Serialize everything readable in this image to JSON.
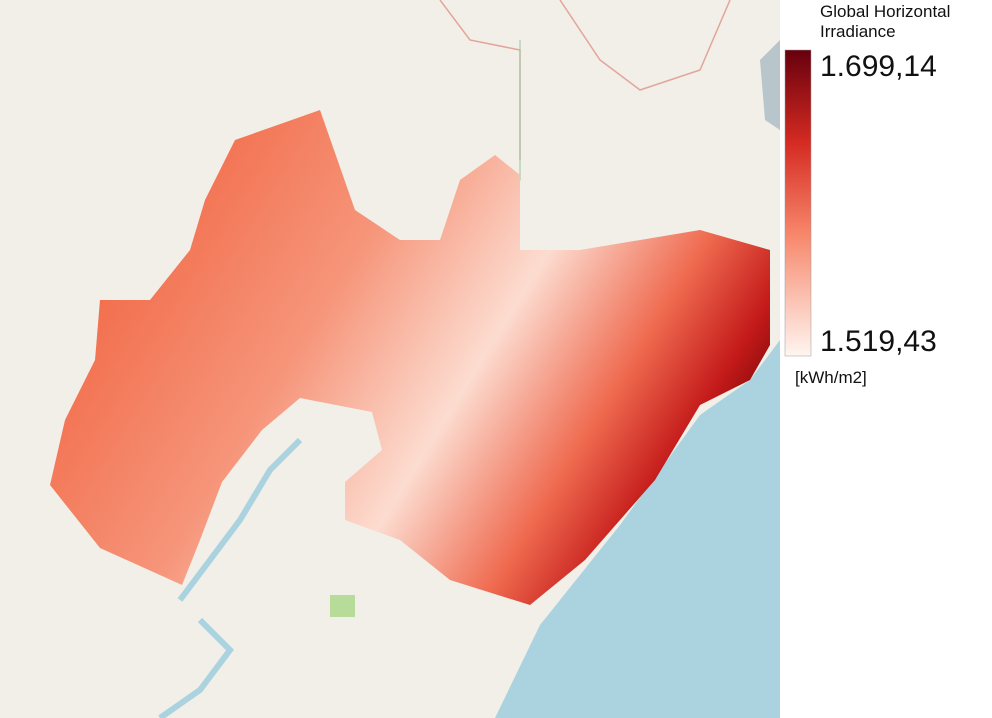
{
  "legend": {
    "title": "Global Horizontal Irradiance",
    "max_label": "1.699,14",
    "min_label": "1.519,43",
    "unit": "[kWh/m2]"
  }
}
